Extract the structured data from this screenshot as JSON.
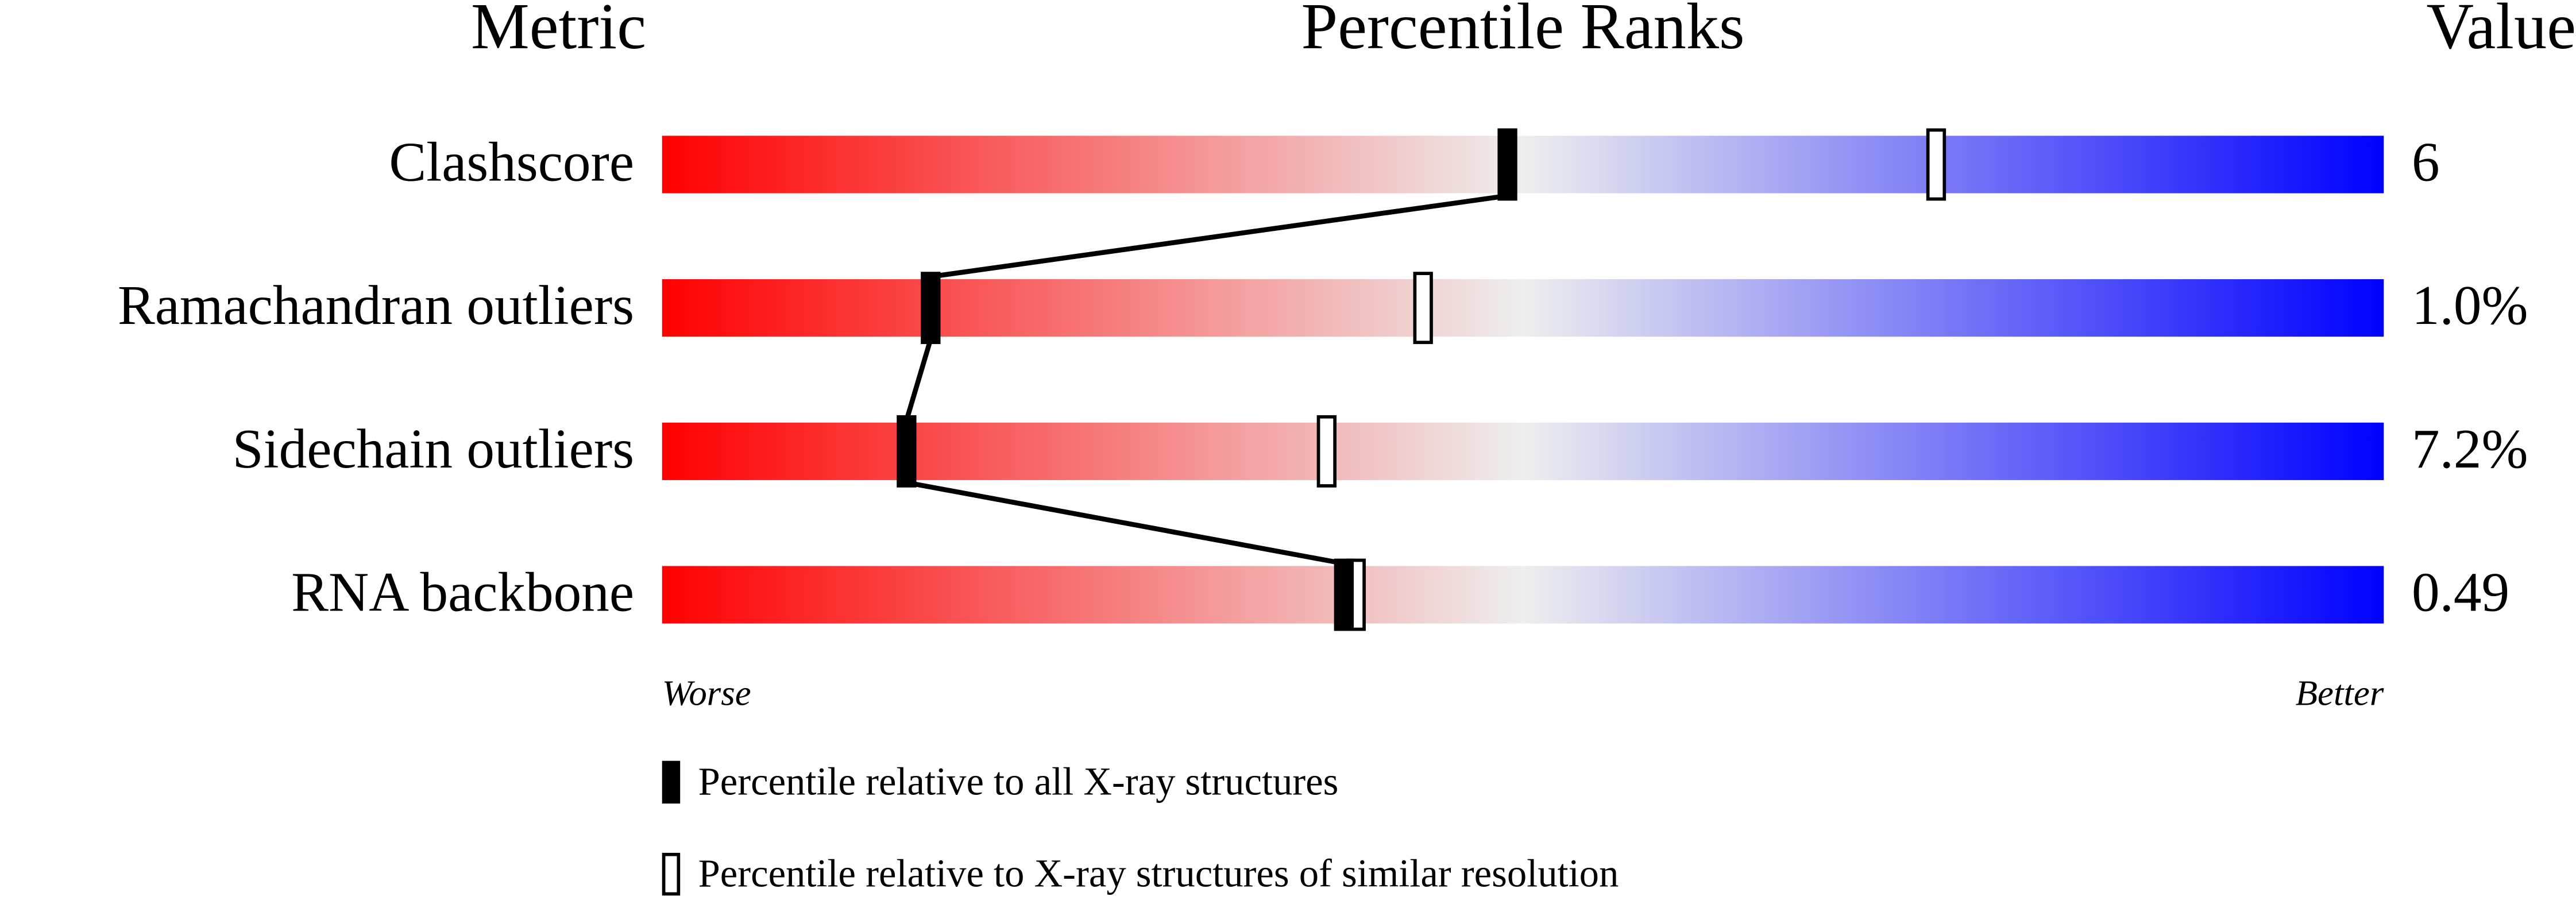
{
  "chart_data": {
    "type": "percentile-slider",
    "headers": [
      "Metric",
      "Percentile Ranks",
      "Value"
    ],
    "categories": [
      "Clashscore",
      "Ramachandran outliers",
      "Sidechain outliers",
      "RNA backbone"
    ],
    "metric_values": [
      "6",
      "1.0%",
      "7.2%",
      "0.49"
    ],
    "xlim": [
      0,
      100
    ],
    "axis_ends": [
      "Worse",
      "Better"
    ],
    "gradient": [
      "#ff0000",
      "#eeeeee",
      "#0000ff"
    ],
    "series": [
      {
        "name": "Percentile relative to all X-ray structures",
        "color": "#000000",
        "values": [
          49.1,
          15.6,
          14.2,
          39.6
        ]
      },
      {
        "name": "Percentile relative to X-ray structures of similar resolution",
        "color": "#ffffff",
        "values": [
          74.0,
          44.2,
          38.6,
          40.3
        ]
      }
    ]
  }
}
